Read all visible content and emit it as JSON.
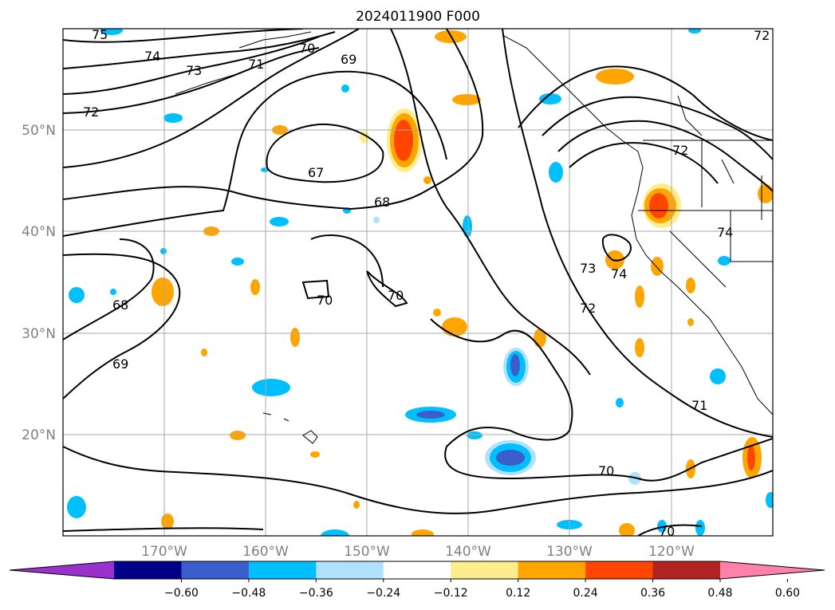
{
  "title": "2024011900 F000",
  "lat_labels": [
    "50°N",
    "40°N",
    "30°N",
    "20°N"
  ],
  "lon_labels": [
    "170°W",
    "160°W",
    "150°W",
    "140°W",
    "130°W",
    "120°W"
  ],
  "colorbar": {
    "ticks": [
      "−0.60",
      "−0.48",
      "−0.36",
      "−0.24",
      "−0.12",
      "0.12",
      "0.24",
      "0.36",
      "0.48",
      "0.60"
    ],
    "colors": [
      "#9932cc",
      "#00008b",
      "#3a5fcd",
      "#00bfff",
      "#b0e2ff",
      "#ffffff",
      "#ffec8b",
      "#ffa500",
      "#ff4500",
      "#b22222",
      "#ff82ab"
    ]
  },
  "contour_labels": [
    "75",
    "74",
    "73",
    "71",
    "70",
    "69",
    "72",
    "67",
    "68",
    "70",
    "70",
    "68",
    "69",
    "73",
    "74",
    "72",
    "71",
    "70",
    "70",
    "72",
    "74",
    "72"
  ]
}
